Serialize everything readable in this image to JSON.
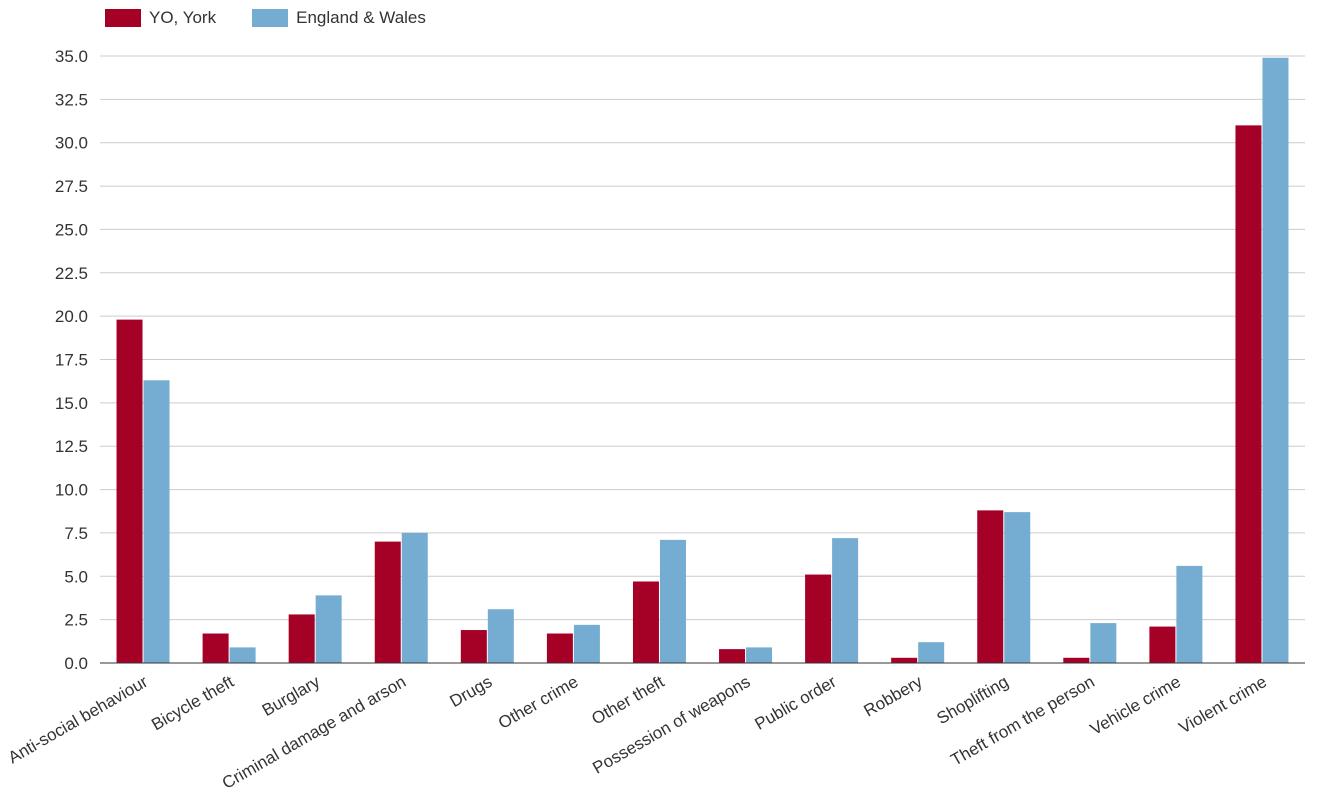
{
  "chart_data": {
    "type": "bar",
    "categories": [
      "Anti-social behaviour",
      "Bicycle theft",
      "Burglary",
      "Criminal damage and arson",
      "Drugs",
      "Other crime",
      "Other theft",
      "Possession of weapons",
      "Public order",
      "Robbery",
      "Shoplifting",
      "Theft from the person",
      "Vehicle crime",
      "Violent crime"
    ],
    "series": [
      {
        "name": "YO, York",
        "color": "#a50026",
        "values": [
          19.8,
          1.7,
          2.8,
          7.0,
          1.9,
          1.7,
          4.7,
          0.8,
          5.1,
          0.3,
          8.8,
          0.3,
          2.1,
          31.0
        ]
      },
      {
        "name": "England & Wales",
        "color": "#74add1",
        "values": [
          16.3,
          0.9,
          3.9,
          7.5,
          3.1,
          2.2,
          7.1,
          0.9,
          7.2,
          1.2,
          8.7,
          2.3,
          5.6,
          34.9
        ]
      }
    ],
    "yticks": [
      "0.0",
      "2.5",
      "5.0",
      "7.5",
      "10.0",
      "12.5",
      "15.0",
      "17.5",
      "20.0",
      "22.5",
      "25.0",
      "27.5",
      "30.0",
      "32.5",
      "35.0"
    ],
    "ylim": [
      0,
      35
    ],
    "grid": true,
    "legend_position": "top-left"
  }
}
